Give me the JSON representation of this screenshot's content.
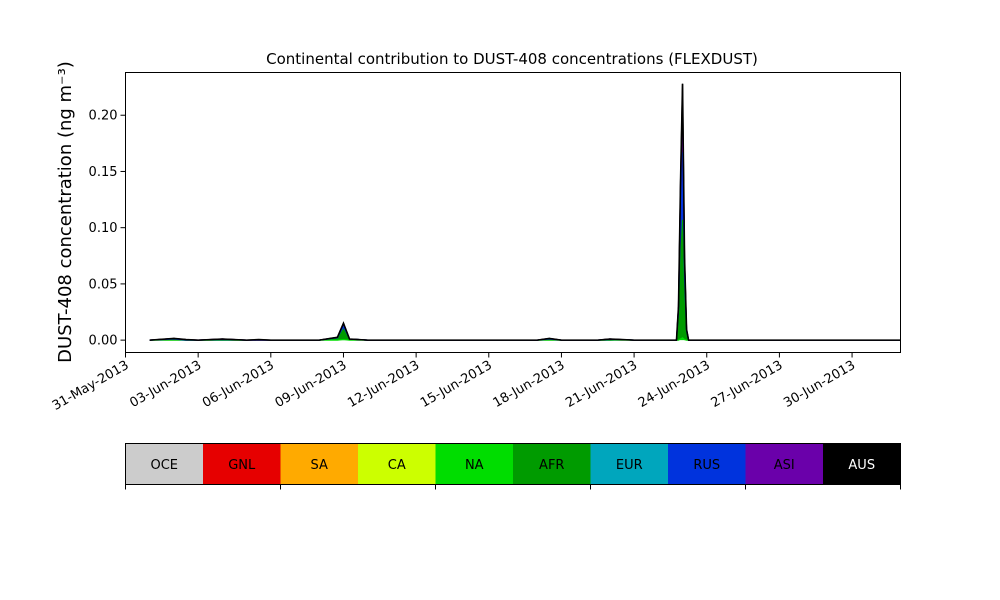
{
  "chart_data": {
    "type": "area",
    "title": "Continental contribution to DUST-408 concentrations (FLEXDUST)",
    "ylabel": "DUST-408 concentration (ng m⁻³)",
    "xlabel": "",
    "grid": false,
    "x_axis": {
      "type": "date",
      "range": [
        "2013-05-31",
        "2013-07-02"
      ],
      "ticks": [
        "2013-05-31",
        "2013-06-03",
        "2013-06-06",
        "2013-06-09",
        "2013-06-12",
        "2013-06-15",
        "2013-06-18",
        "2013-06-21",
        "2013-06-24",
        "2013-06-27",
        "2013-06-30"
      ],
      "tick_labels": [
        "31-May-2013",
        "03-Jun-2013",
        "06-Jun-2013",
        "09-Jun-2013",
        "12-Jun-2013",
        "15-Jun-2013",
        "18-Jun-2013",
        "21-Jun-2013",
        "24-Jun-2013",
        "27-Jun-2013",
        "30-Jun-2013"
      ]
    },
    "y_axis": {
      "range": [
        -0.011,
        0.238
      ],
      "ticks": [
        0.0,
        0.05,
        0.1,
        0.15,
        0.2
      ],
      "tick_labels": [
        "0.00",
        "0.05",
        "0.10",
        "0.15",
        "0.20"
      ]
    },
    "x": [
      "2013-06-01",
      "2013-06-02",
      "2013-06-02 12:00",
      "2013-06-03",
      "2013-06-04",
      "2013-06-05",
      "2013-06-05 12:00",
      "2013-06-06",
      "2013-06-07",
      "2013-06-08",
      "2013-06-08 18:00",
      "2013-06-09",
      "2013-06-09 06:00",
      "2013-06-10",
      "2013-06-12",
      "2013-06-14",
      "2013-06-16",
      "2013-06-17",
      "2013-06-17 12:00",
      "2013-06-18",
      "2013-06-19",
      "2013-06-19 12:00",
      "2013-06-20",
      "2013-06-20 12:00",
      "2013-06-21",
      "2013-06-21 12:00",
      "2013-06-22",
      "2013-06-22 18:00",
      "2013-06-22 20:00",
      "2013-06-22 22:00",
      "2013-06-23",
      "2013-06-23 02:00",
      "2013-06-23 04:00",
      "2013-06-23 06:00",
      "2013-06-23 12:00",
      "2013-06-24",
      "2013-06-26",
      "2013-06-28",
      "2013-06-30",
      "2013-07-02"
    ],
    "series": [
      {
        "name": "NA",
        "color": "#00dd00",
        "values": [
          0.0,
          0.0,
          0.0,
          0.0,
          0.0,
          0.0,
          0.0,
          0.0,
          0.0,
          0.0,
          0.0,
          0.0005,
          0.0,
          0.0,
          0.0,
          0.0,
          0.0,
          0.0,
          0.0,
          0.0,
          0.0,
          0.0,
          0.0,
          0.0,
          0.0,
          0.0,
          0.0,
          0.0,
          0.0,
          0.001,
          0.002,
          0.0005,
          0.0,
          0.0,
          0.0,
          0.0,
          0.0,
          0.0,
          0.0,
          0.0
        ]
      },
      {
        "name": "AFR",
        "color": "#009b00",
        "values": [
          0.0,
          0.0005,
          0.0,
          0.0,
          0.0,
          0.0,
          0.0,
          0.0,
          0.0,
          0.0,
          0.002,
          0.009,
          0.001,
          0.0,
          0.0,
          0.0,
          0.0,
          0.0,
          0.0005,
          0.0,
          0.0,
          0.0,
          0.0,
          0.0005,
          0.0,
          0.0,
          0.0,
          0.0,
          0.015,
          0.07,
          0.105,
          0.035,
          0.005,
          0.0,
          0.0,
          0.0,
          0.0,
          0.0,
          0.0,
          0.0
        ]
      },
      {
        "name": "RUS",
        "color": "#0033dd",
        "values": [
          0.0,
          0.0005,
          0.0,
          0.0,
          0.0005,
          0.0,
          0.0,
          0.0,
          0.0,
          0.0,
          0.0,
          0.003,
          0.0,
          0.0,
          0.0,
          0.0,
          0.0,
          0.0,
          0.0005,
          0.0,
          0.0,
          0.0,
          0.0005,
          0.0,
          0.0,
          0.0,
          0.0,
          0.0,
          0.01,
          0.04,
          0.06,
          0.02,
          0.003,
          0.0,
          0.0,
          0.0,
          0.0,
          0.0,
          0.0,
          0.0
        ]
      },
      {
        "name": "ASI",
        "color": "#6a00aa",
        "values": [
          0.0,
          0.0005,
          0.0005,
          0.0,
          0.0005,
          0.0,
          0.0,
          0.0,
          0.0,
          0.0,
          0.0005,
          0.002,
          0.0,
          0.0,
          0.0,
          0.0,
          0.0,
          0.0,
          0.0005,
          0.0,
          0.0,
          0.0,
          0.0005,
          0.0,
          0.0,
          0.0,
          0.0,
          0.0,
          0.005,
          0.025,
          0.04,
          0.015,
          0.0015,
          0.0,
          0.0,
          0.0,
          0.0,
          0.0,
          0.0,
          0.0
        ]
      },
      {
        "name": "AUS",
        "color": "#000000",
        "values": [
          0.0,
          0.0,
          0.0,
          0.0,
          0.0,
          0.0,
          0.0005,
          0.0,
          0.0,
          0.0,
          0.0,
          0.0005,
          0.0,
          0.0,
          0.0,
          0.0,
          0.0,
          0.0,
          0.0,
          0.0,
          0.0,
          0.0,
          0.0,
          0.0,
          0.0,
          0.0,
          0.0,
          0.0,
          0.0,
          0.004,
          0.021,
          0.003,
          0.0,
          0.0,
          0.0,
          0.0,
          0.0,
          0.0,
          0.0,
          0.0
        ]
      }
    ],
    "legend": {
      "placement": "bottom",
      "entries": [
        {
          "label": "OCE",
          "color": "#cccccc",
          "text_color": "#000000"
        },
        {
          "label": "GNL",
          "color": "#e60000",
          "text_color": "#000000"
        },
        {
          "label": "SA",
          "color": "#ffaa00",
          "text_color": "#000000"
        },
        {
          "label": "CA",
          "color": "#ccff00",
          "text_color": "#000000"
        },
        {
          "label": "NA",
          "color": "#00dd00",
          "text_color": "#000000"
        },
        {
          "label": "AFR",
          "color": "#009b00",
          "text_color": "#000000"
        },
        {
          "label": "EUR",
          "color": "#00a6bd",
          "text_color": "#000000"
        },
        {
          "label": "RUS",
          "color": "#0033dd",
          "text_color": "#000000"
        },
        {
          "label": "ASI",
          "color": "#6a00aa",
          "text_color": "#000000"
        },
        {
          "label": "AUS",
          "color": "#000000",
          "text_color": "#ffffff"
        }
      ]
    }
  }
}
